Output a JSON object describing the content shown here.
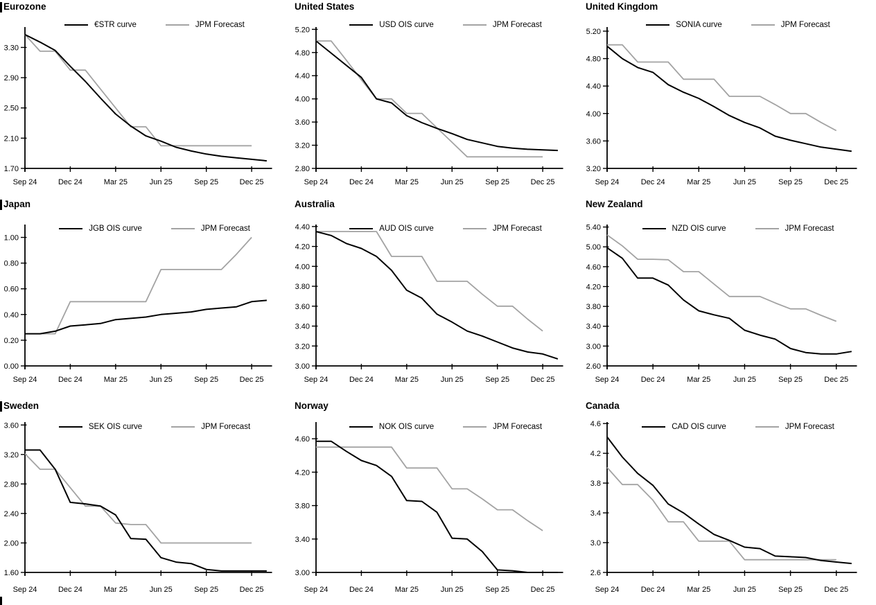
{
  "page": {
    "description": "Policy rate OIS curves vs JPM forecasts, nine economies",
    "background": "#ffffff",
    "line_black": "#000000",
    "line_gray": "#a3a3a3",
    "left_section_bars": true,
    "bottom_left_mark": true
  },
  "x_axis": {
    "tick_labels": [
      "Sep 24",
      "Dec 24",
      "Mar 25",
      "Jun 25",
      "Sep 25",
      "Dec 25"
    ],
    "tick_positions": [
      0,
      3,
      6,
      9,
      12,
      15
    ],
    "months_total": 16
  },
  "chart_data": [
    {
      "type": "line",
      "title": "Eurozone",
      "section_bar": true,
      "row": 0,
      "col": 0,
      "ylim": [
        1.7,
        3.57
      ],
      "y_tick_labels": [
        "3.30",
        "2.90",
        "2.50",
        "2.10",
        "1.70"
      ],
      "y_tick_values": [
        3.3,
        2.9,
        2.5,
        2.1,
        1.7
      ],
      "series": [
        {
          "name": "JPM Forecast",
          "color": "#a3a3a3",
          "values": [
            3.47,
            3.25,
            3.25,
            3.0,
            3.0,
            2.75,
            2.5,
            2.25,
            2.25,
            2.0,
            2.0,
            2.0,
            2.0,
            2.0,
            2.0,
            2.0
          ]
        },
        {
          "name": "€STR curve",
          "color": "#000000",
          "values": [
            3.47,
            3.37,
            3.26,
            3.05,
            2.85,
            2.63,
            2.42,
            2.26,
            2.13,
            2.06,
            1.98,
            1.93,
            1.89,
            1.86,
            1.84,
            1.82,
            1.8
          ]
        }
      ]
    },
    {
      "type": "line",
      "title": "United States",
      "section_bar": false,
      "row": 0,
      "col": 1,
      "ylim": [
        2.8,
        5.24
      ],
      "y_tick_labels": [
        "5.20",
        "4.80",
        "4.40",
        "4.00",
        "3.60",
        "3.20",
        "2.80"
      ],
      "y_tick_values": [
        5.2,
        4.8,
        4.4,
        4.0,
        3.6,
        3.2,
        2.8
      ],
      "series": [
        {
          "name": "JPM Forecast",
          "color": "#a3a3a3",
          "values": [
            5.0,
            5.0,
            4.67,
            4.33,
            4.0,
            4.0,
            3.75,
            3.75,
            3.5,
            3.25,
            3.0,
            3.0,
            3.0,
            3.0,
            3.0,
            3.0
          ]
        },
        {
          "name": "USD OIS curve",
          "color": "#000000",
          "values": [
            5.0,
            4.79,
            4.58,
            4.37,
            4.0,
            3.93,
            3.71,
            3.59,
            3.49,
            3.4,
            3.3,
            3.24,
            3.18,
            3.15,
            3.13,
            3.12,
            3.11
          ]
        }
      ]
    },
    {
      "type": "line",
      "title": "United Kingdom",
      "section_bar": false,
      "row": 0,
      "col": 2,
      "ylim": [
        3.2,
        5.26
      ],
      "y_tick_labels": [
        "5.20",
        "4.80",
        "4.40",
        "4.00",
        "3.60",
        "3.20"
      ],
      "y_tick_values": [
        5.2,
        4.8,
        4.4,
        4.0,
        3.6,
        3.2
      ],
      "series": [
        {
          "name": "JPM Forecast",
          "color": "#a3a3a3",
          "values": [
            5.0,
            5.0,
            4.75,
            4.75,
            4.75,
            4.5,
            4.5,
            4.5,
            4.25,
            4.25,
            4.25,
            4.13,
            4.0,
            4.0,
            3.87,
            3.75
          ]
        },
        {
          "name": "SONIA curve",
          "color": "#000000",
          "values": [
            4.98,
            4.8,
            4.67,
            4.6,
            4.42,
            4.31,
            4.22,
            4.1,
            3.97,
            3.87,
            3.79,
            3.67,
            3.61,
            3.56,
            3.51,
            3.48,
            3.45
          ]
        }
      ]
    },
    {
      "type": "line",
      "title": "Japan",
      "section_bar": true,
      "row": 1,
      "col": 0,
      "ylim": [
        0.0,
        1.1
      ],
      "y_tick_labels": [
        "1.00",
        "0.80",
        "0.60",
        "0.40",
        "0.20",
        "0.00"
      ],
      "y_tick_values": [
        1.0,
        0.8,
        0.6,
        0.4,
        0.2,
        0.0
      ],
      "series": [
        {
          "name": "JPM Forecast",
          "color": "#a3a3a3",
          "values": [
            0.25,
            0.25,
            0.25,
            0.5,
            0.5,
            0.5,
            0.5,
            0.5,
            0.5,
            0.75,
            0.75,
            0.75,
            0.75,
            0.75,
            0.87,
            1.0
          ]
        },
        {
          "name": "JGB OIS curve",
          "color": "#000000",
          "values": [
            0.25,
            0.25,
            0.27,
            0.31,
            0.32,
            0.33,
            0.36,
            0.37,
            0.38,
            0.4,
            0.41,
            0.42,
            0.44,
            0.45,
            0.46,
            0.5,
            0.51
          ]
        }
      ]
    },
    {
      "type": "line",
      "title": "Australia",
      "section_bar": false,
      "row": 1,
      "col": 1,
      "ylim": [
        3.0,
        4.42
      ],
      "y_tick_labels": [
        "4.40",
        "4.20",
        "4.00",
        "3.80",
        "3.60",
        "3.40",
        "3.20",
        "3.00"
      ],
      "y_tick_values": [
        4.4,
        4.2,
        4.0,
        3.8,
        3.6,
        3.4,
        3.2,
        3.0
      ],
      "series": [
        {
          "name": "JPM Forecast",
          "color": "#a3a3a3",
          "values": [
            4.35,
            4.35,
            4.35,
            4.35,
            4.35,
            4.1,
            4.1,
            4.1,
            3.85,
            3.85,
            3.85,
            3.72,
            3.6,
            3.6,
            3.47,
            3.35
          ]
        },
        {
          "name": "AUD OIS curve",
          "color": "#000000",
          "values": [
            4.35,
            4.31,
            4.23,
            4.18,
            4.1,
            3.96,
            3.76,
            3.68,
            3.52,
            3.44,
            3.35,
            3.3,
            3.24,
            3.18,
            3.14,
            3.12,
            3.07
          ]
        }
      ]
    },
    {
      "type": "line",
      "title": "New Zealand",
      "section_bar": false,
      "row": 1,
      "col": 2,
      "ylim": [
        2.6,
        5.45
      ],
      "y_tick_labels": [
        "5.40",
        "5.00",
        "4.60",
        "4.20",
        "3.80",
        "3.40",
        "3.00",
        "2.60"
      ],
      "y_tick_values": [
        5.4,
        5.0,
        4.6,
        4.2,
        3.8,
        3.4,
        3.0,
        2.6
      ],
      "series": [
        {
          "name": "JPM Forecast",
          "color": "#a3a3a3",
          "values": [
            5.24,
            5.02,
            4.75,
            4.75,
            4.74,
            4.5,
            4.5,
            4.25,
            4.0,
            4.0,
            4.0,
            3.87,
            3.75,
            3.75,
            3.62,
            3.5
          ]
        },
        {
          "name": "NZD OIS curve",
          "color": "#000000",
          "values": [
            4.98,
            4.77,
            4.37,
            4.37,
            4.23,
            3.93,
            3.71,
            3.63,
            3.56,
            3.32,
            3.22,
            3.14,
            2.95,
            2.87,
            2.84,
            2.84,
            2.89
          ]
        }
      ]
    },
    {
      "type": "line",
      "title": "Sweden",
      "section_bar": true,
      "row": 2,
      "col": 0,
      "ylim": [
        1.6,
        3.64
      ],
      "y_tick_labels": [
        "3.60",
        "3.20",
        "2.80",
        "2.40",
        "2.00",
        "1.60"
      ],
      "y_tick_values": [
        3.6,
        3.2,
        2.8,
        2.4,
        2.0,
        1.6
      ],
      "series": [
        {
          "name": "JPM Forecast",
          "color": "#a3a3a3",
          "values": [
            3.21,
            3.0,
            3.0,
            2.75,
            2.5,
            2.5,
            2.27,
            2.25,
            2.25,
            2.0,
            2.0,
            2.0,
            2.0,
            2.0,
            2.0,
            2.0
          ]
        },
        {
          "name": "SEK OIS curve",
          "color": "#000000",
          "values": [
            3.26,
            3.26,
            3.0,
            2.55,
            2.53,
            2.5,
            2.38,
            2.06,
            2.05,
            1.8,
            1.74,
            1.72,
            1.64,
            1.62,
            1.62,
            1.62,
            1.62
          ]
        }
      ]
    },
    {
      "type": "line",
      "title": "Norway",
      "section_bar": false,
      "row": 2,
      "col": 1,
      "ylim": [
        3.0,
        4.8
      ],
      "y_tick_labels": [
        "4.60",
        "4.20",
        "3.80",
        "3.40",
        "3.00"
      ],
      "y_tick_values": [
        4.6,
        4.2,
        3.8,
        3.4,
        3.0
      ],
      "series": [
        {
          "name": "JPM Forecast",
          "color": "#a3a3a3",
          "values": [
            4.5,
            4.5,
            4.5,
            4.5,
            4.5,
            4.5,
            4.25,
            4.25,
            4.25,
            4.0,
            4.0,
            3.88,
            3.75,
            3.75,
            3.62,
            3.5
          ]
        },
        {
          "name": "NOK OIS curve",
          "color": "#000000",
          "values": [
            4.57,
            4.57,
            4.45,
            4.34,
            4.28,
            4.15,
            3.86,
            3.85,
            3.72,
            3.41,
            3.4,
            3.25,
            3.03,
            3.02,
            3.0,
            3.0,
            3.0
          ]
        }
      ]
    },
    {
      "type": "line",
      "title": "Canada",
      "section_bar": false,
      "row": 2,
      "col": 2,
      "ylim": [
        2.6,
        4.62
      ],
      "y_tick_labels": [
        "4.6",
        "4.2",
        "3.8",
        "3.4",
        "3.0",
        "2.6"
      ],
      "y_tick_values": [
        4.6,
        4.2,
        3.8,
        3.4,
        3.0,
        2.6
      ],
      "series": [
        {
          "name": "JPM Forecast",
          "color": "#a3a3a3",
          "values": [
            4.01,
            3.78,
            3.78,
            3.57,
            3.28,
            3.28,
            3.02,
            3.02,
            3.02,
            2.77,
            2.77,
            2.77,
            2.77,
            2.77,
            2.77,
            2.77
          ]
        },
        {
          "name": "CAD OIS curve",
          "color": "#000000",
          "values": [
            4.42,
            4.15,
            3.93,
            3.77,
            3.52,
            3.4,
            3.25,
            3.11,
            3.03,
            2.94,
            2.92,
            2.82,
            2.81,
            2.8,
            2.76,
            2.74,
            2.72
          ]
        }
      ]
    }
  ]
}
